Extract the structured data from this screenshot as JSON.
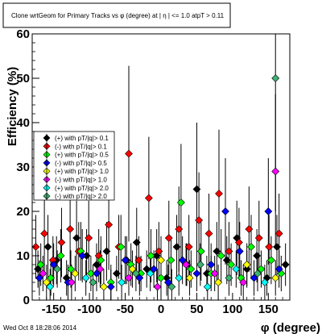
{
  "title": "Clone wrtGeom for Primary Tracks vs φ (degree) at |  η | <= 1.0 atpT > 0.11",
  "timestamp": "Wed Oct  8 18:28:06 2014",
  "chart_data": {
    "type": "scatter",
    "title": "Clone wrtGeom for Primary Tracks vs φ (degree) at |  η | <= 1.0 atpT > 0.11",
    "xlabel": "φ (degree)",
    "ylabel": "Efficiency (%)",
    "xlim": [
      -180,
      180
    ],
    "ylim": [
      0,
      60
    ],
    "xticks": [
      -150,
      -100,
      -50,
      0,
      50,
      100,
      150
    ],
    "yticks": [
      0,
      10,
      20,
      30,
      40,
      50,
      60
    ],
    "grid": false,
    "legend_position": "left",
    "series": [
      {
        "name": "(+) with pT/|q|> 0.1",
        "color": "#000000",
        "marker": "diamond",
        "x": [
          -172,
          -158,
          -146,
          -132,
          -118,
          -104,
          -90,
          -76,
          -62,
          -48,
          -34,
          -20,
          -6,
          8,
          22,
          36,
          50,
          64,
          78,
          92,
          106,
          120,
          134,
          148,
          162,
          174
        ],
        "y": [
          7,
          12,
          9,
          5,
          14,
          10,
          8,
          11,
          6,
          9,
          13,
          7,
          10,
          5,
          12,
          8,
          25,
          6,
          11,
          9,
          14,
          7,
          10,
          5,
          12,
          8
        ]
      },
      {
        "name": "(-) with pT/|q|> 0.1",
        "color": "#ff0000",
        "marker": "diamond",
        "x": [
          -175,
          -163,
          -151,
          -139,
          -127,
          -115,
          -101,
          -87,
          -73,
          -59,
          -45,
          -31,
          -17,
          -3,
          11,
          25,
          39,
          53,
          67,
          81,
          95,
          109,
          123,
          137,
          151,
          165
        ],
        "y": [
          12,
          15,
          9,
          13,
          16,
          11,
          14,
          10,
          17,
          12,
          33,
          9,
          23,
          11,
          14,
          16,
          12,
          18,
          15,
          24,
          11,
          13,
          16,
          14,
          12,
          15
        ]
      },
      {
        "name": "(+) with pT/|q|> 0.5",
        "color": "#00ff00",
        "marker": "diamond",
        "x": [
          -168,
          -154,
          -140,
          -126,
          -112,
          -98,
          -84,
          -70,
          -56,
          -42,
          -28,
          -14,
          0,
          14,
          28,
          42,
          56,
          70,
          84,
          98,
          112,
          126,
          140,
          154,
          168
        ],
        "y": [
          8,
          5,
          10,
          7,
          11,
          6,
          9,
          4,
          12,
          8,
          6,
          10,
          5,
          9,
          22,
          7,
          11,
          6,
          10,
          8,
          5,
          12,
          7,
          9,
          6
        ]
      },
      {
        "name": "(-) with pT/|q|> 0.5",
        "color": "#0000ff",
        "marker": "diamond",
        "x": [
          -170,
          -150,
          -130,
          -110,
          -90,
          -70,
          -50,
          -30,
          -10,
          10,
          30,
          50,
          70,
          90,
          110,
          130,
          150,
          165
        ],
        "y": [
          5,
          8,
          4,
          10,
          6,
          3,
          9,
          5,
          7,
          4,
          9,
          6,
          8,
          20,
          11,
          5,
          20,
          7
        ]
      },
      {
        "name": "(+) with pT/|q|> 1.0",
        "color": "#ffff00",
        "marker": "diamond",
        "x": [
          -160,
          -120,
          -80,
          -40,
          0,
          40,
          80,
          120,
          160
        ],
        "y": [
          4,
          6,
          3,
          7,
          9,
          5,
          4,
          8,
          5
        ]
      },
      {
        "name": "(-) with pT/|q|> 1.0",
        "color": "#ff00ff",
        "marker": "diamond",
        "x": [
          -165,
          -125,
          -85,
          -45,
          -5,
          35,
          75,
          115,
          160
        ],
        "y": [
          6,
          4,
          7,
          5,
          3,
          8,
          6,
          4,
          29
        ]
      },
      {
        "name": "(+) with pT/|q|> 2.0",
        "color": "#00ffff",
        "marker": "diamond",
        "x": [
          -155,
          -105,
          -55,
          -15,
          25,
          65,
          105,
          145
        ],
        "y": [
          3,
          5,
          4,
          6,
          5,
          3,
          7,
          4
        ]
      },
      {
        "name": "(-) with pT/|q|> 2.0",
        "color": "#3cb371",
        "marker": "diamond",
        "x": [
          -145,
          -95,
          -35,
          15,
          55,
          95,
          135,
          160
        ],
        "y": [
          7,
          4,
          6,
          3,
          8,
          5,
          6,
          50
        ]
      }
    ]
  }
}
